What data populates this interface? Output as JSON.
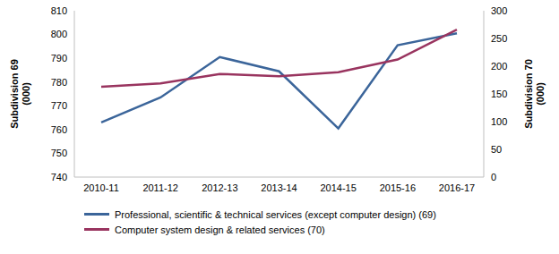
{
  "chart_data": {
    "type": "line",
    "categories": [
      "2010-11",
      "2011-12",
      "2012-13",
      "2013-14",
      "2014-15",
      "2015-16",
      "2016-17"
    ],
    "series": [
      {
        "name": "Professional, scientific & technical services (except computer design) (69)",
        "color": "#3B659A",
        "axis": "y",
        "values": [
          763,
          773.5,
          790.5,
          784.5,
          760.5,
          795.5,
          800.5
        ]
      },
      {
        "name": "Computer system design & related services (70)",
        "color": "#99345F",
        "axis": "y2",
        "values": [
          163,
          169,
          186,
          182,
          189,
          212,
          266
        ]
      }
    ],
    "y_label": "Subdivision 69 (000)",
    "y2_label": "Subdivision 70 (000)",
    "ylim": [
      740,
      810
    ],
    "yticks": [
      740,
      750,
      760,
      770,
      780,
      790,
      800,
      810
    ],
    "y2lim": [
      0,
      300
    ],
    "y2ticks": [
      0,
      50,
      100,
      150,
      200,
      250,
      300
    ],
    "grid": false,
    "legend": "bottom"
  }
}
